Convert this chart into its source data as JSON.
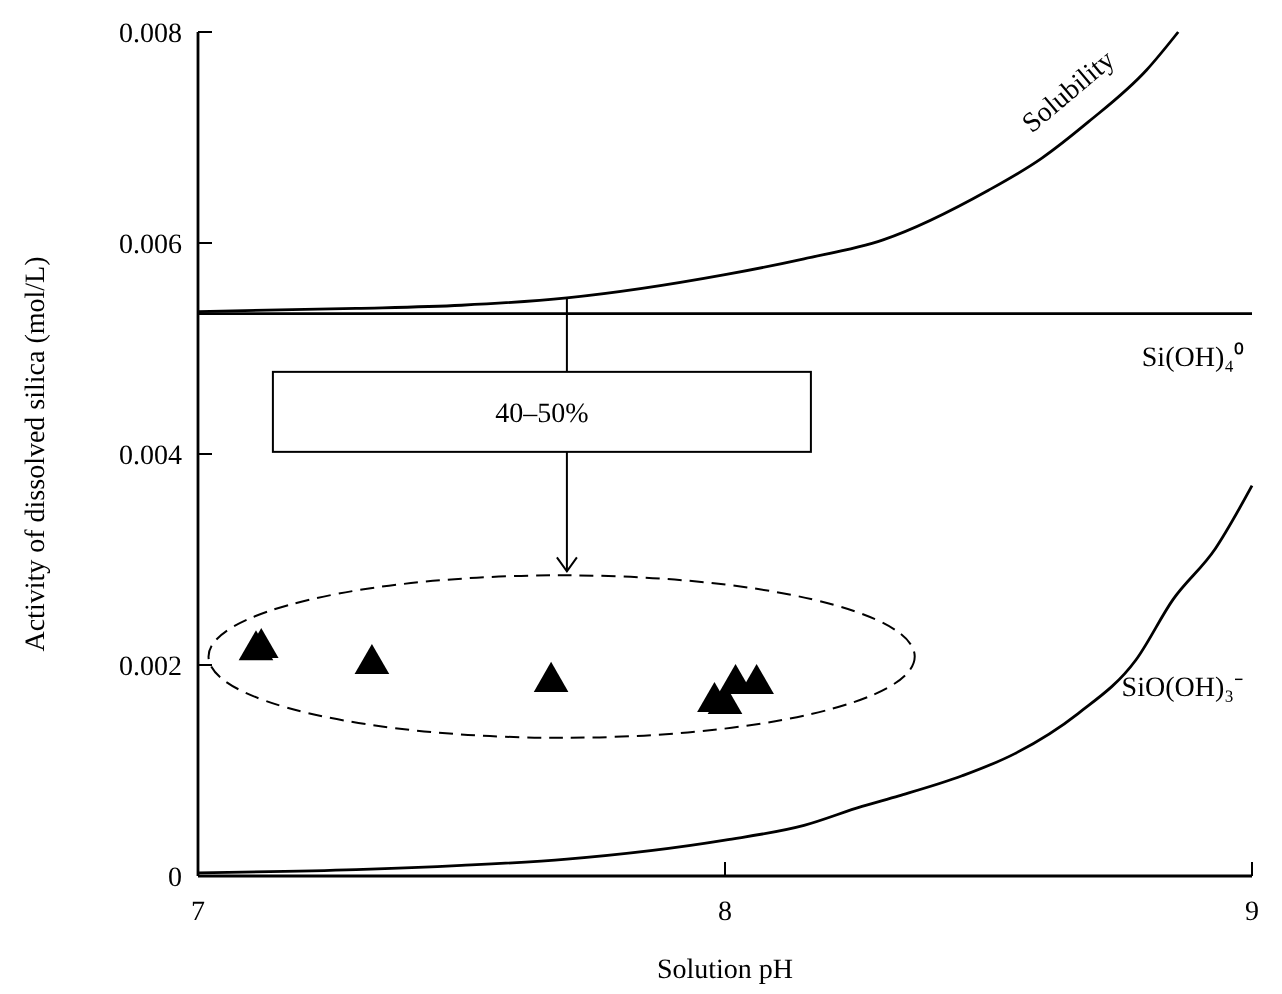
{
  "chart_data": {
    "type": "line",
    "xlabel": "Solution pH",
    "ylabel": "Activity of dissolved silica (mol/L)",
    "xlim": [
      7,
      9
    ],
    "xticks": [
      7,
      8,
      9
    ],
    "ylim": [
      0,
      0.008
    ],
    "yticks": [
      0,
      0.002,
      0.004,
      0.006,
      0.008
    ],
    "grid": false,
    "series": [
      {
        "name": "Solubility",
        "color": "#000000",
        "line_style": "solid",
        "x": [
          7,
          7.3,
          7.5,
          7.7,
          8,
          8.15,
          8.3,
          8.5,
          8.6,
          8.69,
          8.8,
          8.86
        ],
        "values": [
          0.00535,
          0.00538,
          0.00541,
          0.00548,
          0.0057,
          0.00585,
          0.00603,
          0.0065,
          0.0068,
          0.00715,
          0.00764,
          0.008
        ]
      },
      {
        "name": "Si(OH)₄⁰",
        "color": "#000000",
        "line_style": "solid",
        "x": [
          7,
          9
        ],
        "values": [
          0.00533,
          0.00533
        ]
      },
      {
        "name": "SiO(OH)₃⁻",
        "color": "#000000",
        "line_style": "solid",
        "x": [
          7,
          7.3,
          7.5,
          7.7,
          8,
          8.15,
          8.26,
          8.33,
          8.45,
          8.55,
          8.67,
          8.78,
          8.85,
          8.93,
          9
        ],
        "values": [
          3e-05,
          6e-05,
          0.0001,
          0.00016,
          0.00034,
          0.00048,
          0.00066,
          0.00076,
          0.00095,
          0.00116,
          0.00154,
          0.00205,
          0.00262,
          0.0031,
          0.0037
        ]
      },
      {
        "type": "scatter",
        "color": "#000000",
        "marker": "triangle",
        "x": [
          7.11,
          7.12,
          7.33,
          7.67,
          7.98,
          8.0,
          8.02,
          8.06
        ],
        "values": [
          0.00214,
          0.00216,
          0.00201,
          0.00184,
          0.00165,
          0.00163,
          0.00182,
          0.00182
        ]
      }
    ],
    "annotations": [
      {
        "text": "40–50%",
        "x": 7.7,
        "y": 0.00548
      }
    ]
  }
}
